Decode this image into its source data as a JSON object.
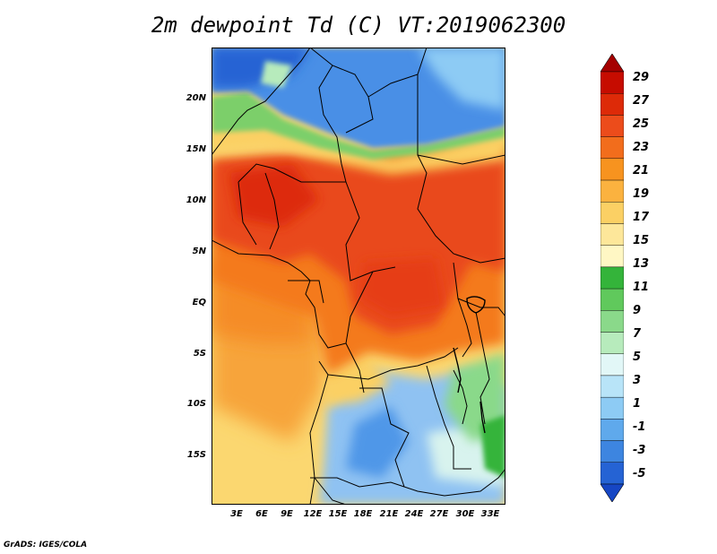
{
  "title": "2m dewpoint Td (C) VT:2019062300",
  "credit": "GrADS: IGES/COLA",
  "map": {
    "lat_labels": [
      "20N",
      "15N",
      "10N",
      "5N",
      "EQ",
      "5S",
      "10S",
      "15S"
    ],
    "lon_labels": [
      "3E",
      "6E",
      "9E",
      "12E",
      "15E",
      "18E",
      "21E",
      "24E",
      "27E",
      "30E",
      "33E"
    ]
  },
  "colorbar": {
    "labels": [
      "29",
      "27",
      "25",
      "23",
      "21",
      "19",
      "17",
      "15",
      "13",
      "11",
      "9",
      "7",
      "5",
      "3",
      "1",
      "-1",
      "-3",
      "-5"
    ],
    "colors": [
      "#a50000",
      "#c60c00",
      "#dd2a08",
      "#ec4c1b",
      "#f26d1c",
      "#f7931f",
      "#fbb23f",
      "#fbd064",
      "#fde79a",
      "#fff7c4",
      "#34b43a",
      "#60c95c",
      "#8ad98a",
      "#b7ebbc",
      "#e2f7f7",
      "#b8e4f8",
      "#8dcbf4",
      "#5fa9ec",
      "#3d85e0",
      "#2563d4",
      "#1646c4"
    ]
  },
  "palette": {
    "sea_south": "#fbd770",
    "sea_gulf": "#f7962a",
    "sahara": "#4a8fe6",
    "sahel_green": "#7ccf6a",
    "core_red": "#e9491c",
    "orange": "#f47a1e",
    "southern_blue": "#8fc2f2"
  }
}
